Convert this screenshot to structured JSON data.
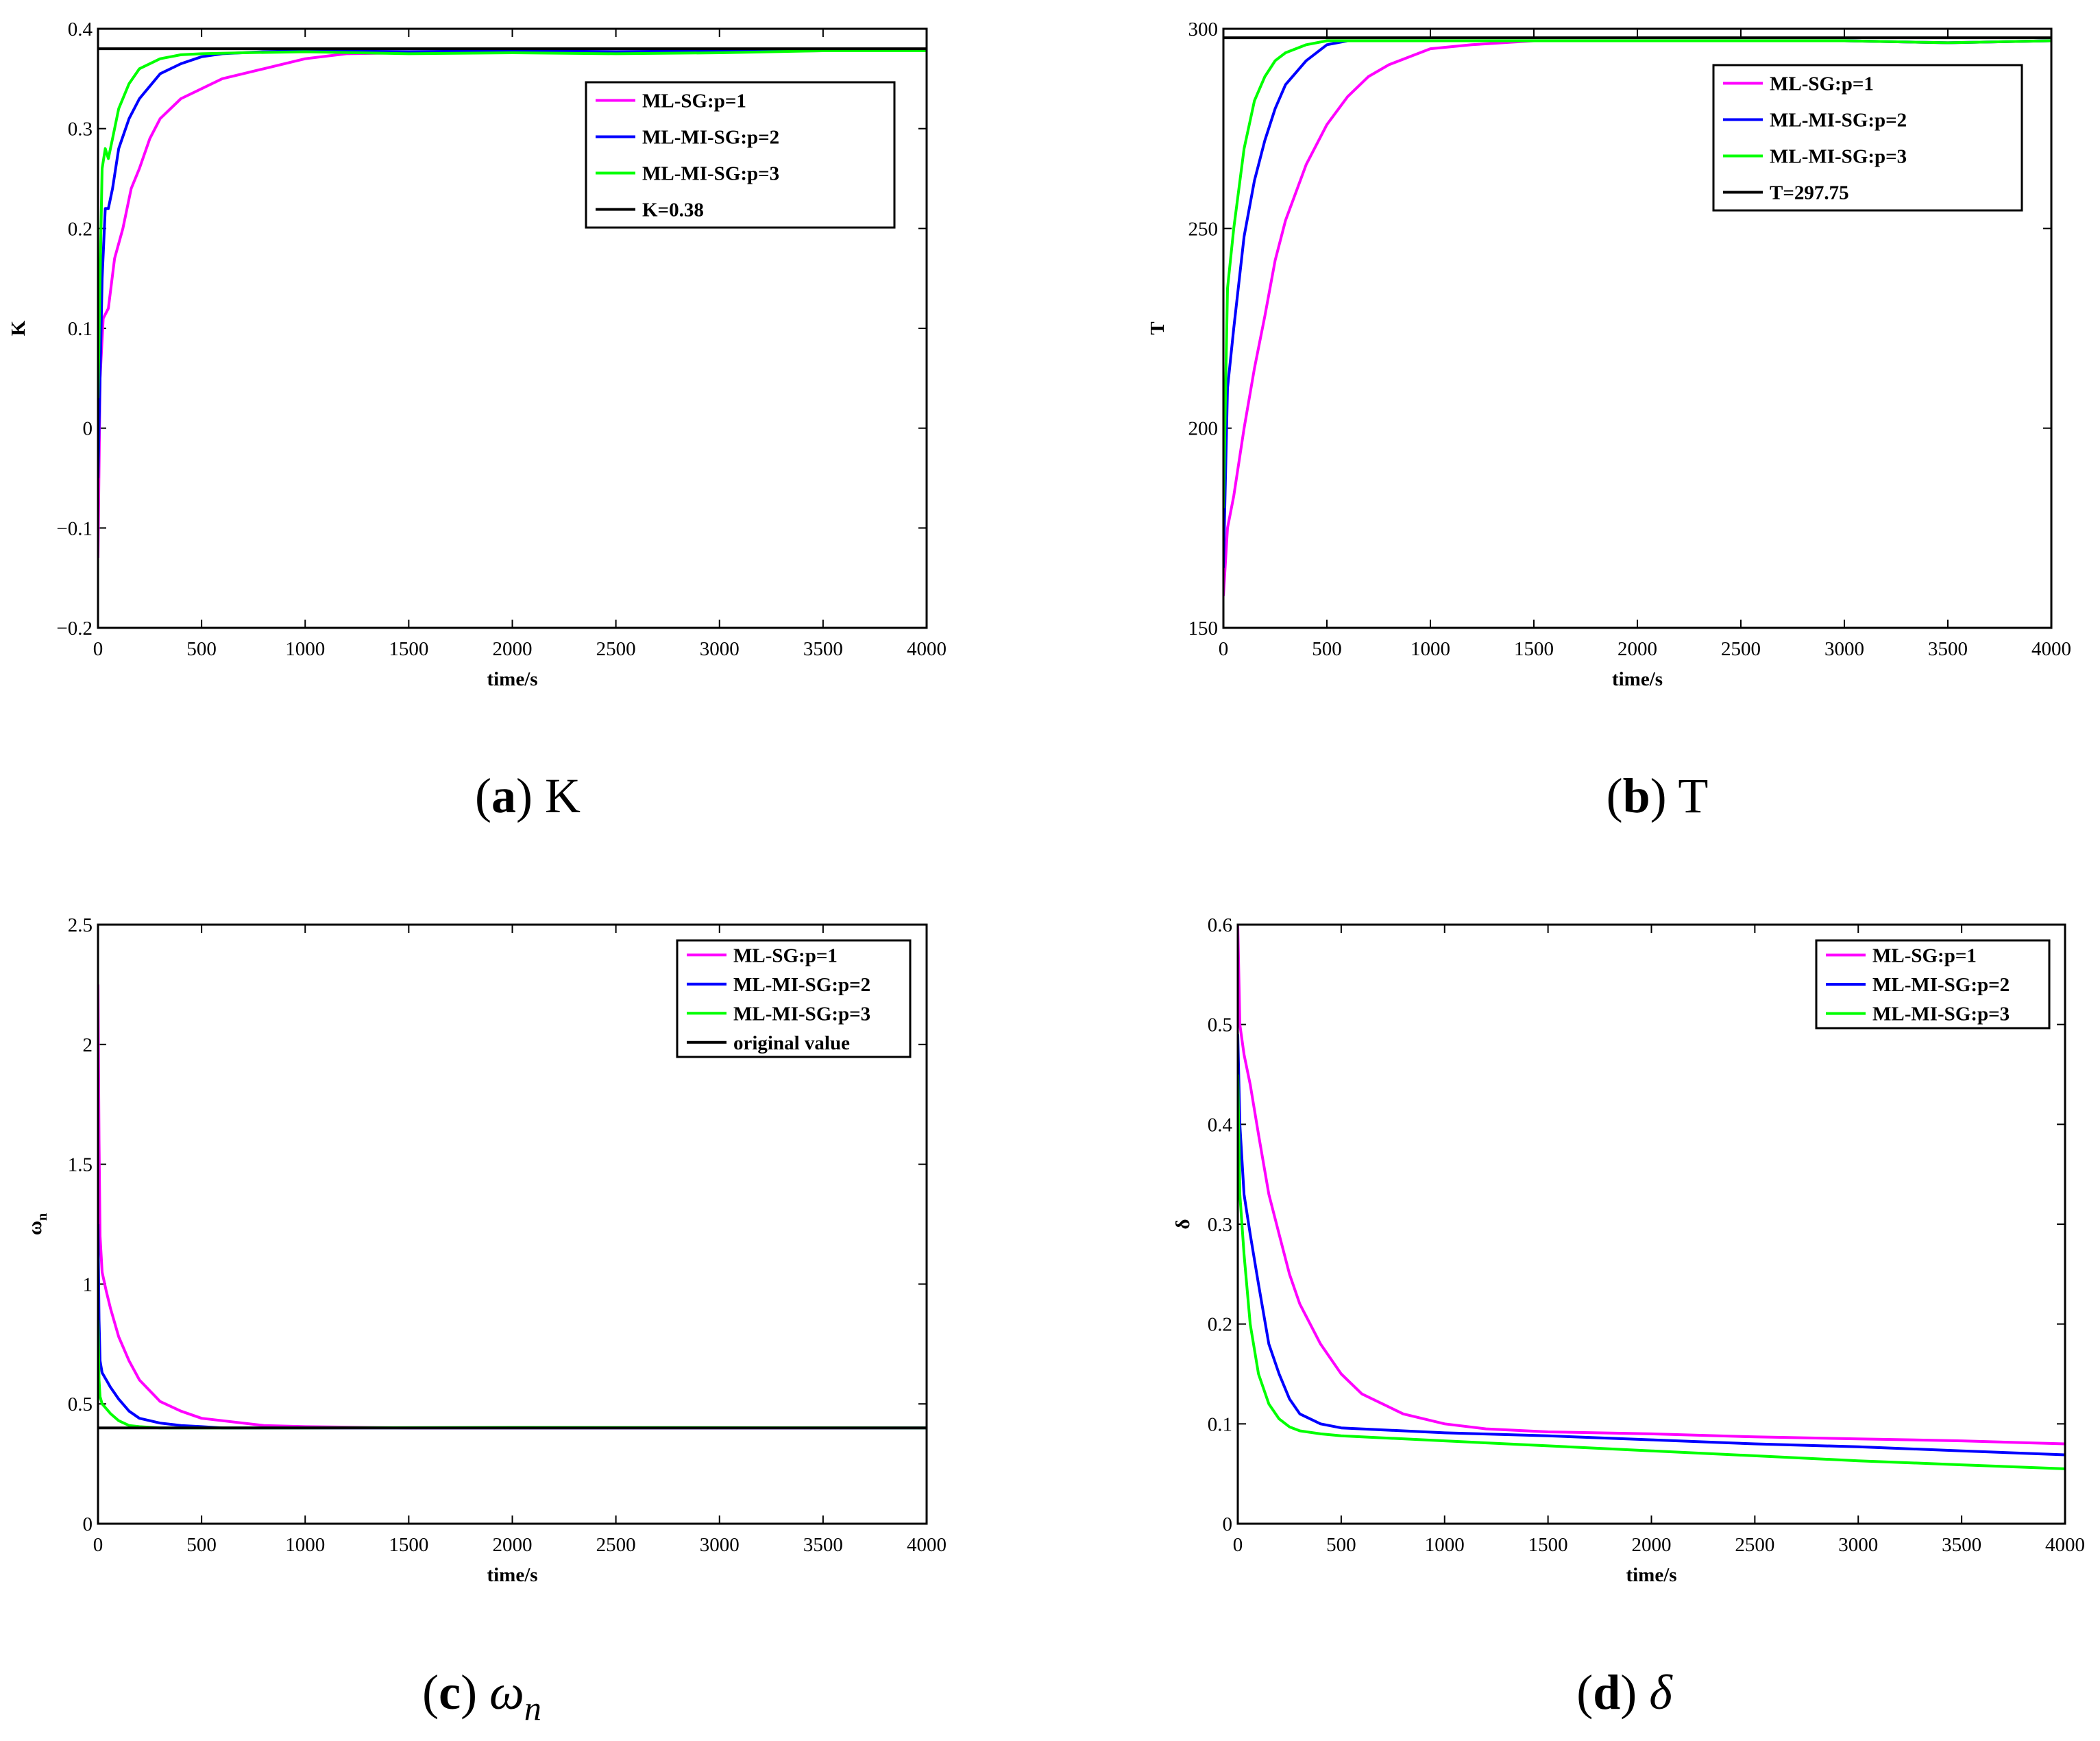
{
  "chart_data": [
    {
      "type": "line",
      "panel": "a",
      "caption_letter": "a",
      "caption_label": "K",
      "xlabel": "time/s",
      "ylabel": "K",
      "xlim": [
        0,
        4000
      ],
      "ylim": [
        -0.2,
        0.4
      ],
      "xticks": [
        "0",
        "500",
        "1000",
        "1500",
        "2000",
        "2500",
        "3000",
        "3500",
        "4000"
      ],
      "yticks": [
        "−0.2",
        "−0.1",
        "0",
        "0.1",
        "0.2",
        "0.3",
        "0.4"
      ],
      "legend": [
        "ML-SG:p=1",
        "ML-MI-SG:p=2",
        "ML-MI-SG:p=3",
        "K=0.38"
      ],
      "legend_position": "top-right",
      "series": [
        {
          "name": "ML-SG:p=1",
          "color": "#ff00ff",
          "x": [
            0,
            10,
            25,
            50,
            80,
            120,
            160,
            200,
            250,
            300,
            400,
            500,
            600,
            700,
            800,
            1000,
            1200,
            1500,
            2000,
            2500,
            3000,
            3500,
            4000
          ],
          "values": [
            -0.13,
            0.05,
            0.11,
            0.12,
            0.17,
            0.2,
            0.24,
            0.26,
            0.29,
            0.31,
            0.33,
            0.34,
            0.35,
            0.355,
            0.36,
            0.37,
            0.375,
            0.376,
            0.377,
            0.376,
            0.377,
            0.378,
            0.379
          ]
        },
        {
          "name": "ML-MI-SG:p=2",
          "color": "#0000ff",
          "x": [
            0,
            10,
            20,
            35,
            50,
            70,
            100,
            150,
            200,
            300,
            400,
            500,
            600,
            800,
            1000,
            1500,
            2000,
            2500,
            3000,
            3500,
            4000
          ],
          "values": [
            -0.05,
            0.05,
            0.15,
            0.22,
            0.22,
            0.24,
            0.28,
            0.31,
            0.33,
            0.355,
            0.365,
            0.372,
            0.375,
            0.377,
            0.378,
            0.377,
            0.378,
            0.377,
            0.378,
            0.379,
            0.379
          ]
        },
        {
          "name": "ML-MI-SG:p=3",
          "color": "#00ff00",
          "x": [
            0,
            10,
            20,
            35,
            50,
            70,
            100,
            150,
            200,
            300,
            400,
            500,
            700,
            1000,
            1500,
            2000,
            2500,
            3000,
            3500,
            4000
          ],
          "values": [
            0.03,
            0.15,
            0.26,
            0.28,
            0.27,
            0.29,
            0.32,
            0.345,
            0.36,
            0.37,
            0.374,
            0.375,
            0.376,
            0.377,
            0.375,
            0.376,
            0.375,
            0.376,
            0.378,
            0.378
          ]
        },
        {
          "name": "K=0.38",
          "color": "#000000",
          "x": [
            0,
            4000
          ],
          "values": [
            0.38,
            0.38
          ]
        }
      ]
    },
    {
      "type": "line",
      "panel": "b",
      "caption_letter": "b",
      "caption_label": "T",
      "xlabel": "time/s",
      "ylabel": "T",
      "xlim": [
        0,
        4000
      ],
      "ylim": [
        150,
        300
      ],
      "xticks": [
        "0",
        "500",
        "1000",
        "1500",
        "2000",
        "2500",
        "3000",
        "3500",
        "4000"
      ],
      "yticks": [
        "150",
        "200",
        "250",
        "300"
      ],
      "legend": [
        "ML-SG:p=1",
        "ML-MI-SG:p=2",
        "ML-MI-SG:p=3",
        "T=297.75"
      ],
      "legend_position": "top-right",
      "series": [
        {
          "name": "ML-SG:p=1",
          "color": "#ff00ff",
          "x": [
            0,
            20,
            50,
            100,
            150,
            200,
            250,
            300,
            400,
            500,
            600,
            700,
            800,
            900,
            1000,
            1200,
            1500,
            2000,
            2500,
            3000,
            3500,
            4000
          ],
          "values": [
            158,
            175,
            183,
            200,
            215,
            228,
            242,
            252,
            266,
            276,
            283,
            288,
            291,
            293,
            295,
            296,
            297,
            297,
            297,
            297,
            296.5,
            297
          ]
        },
        {
          "name": "ML-MI-SG:p=2",
          "color": "#0000ff",
          "x": [
            0,
            20,
            50,
            100,
            150,
            200,
            250,
            300,
            400,
            500,
            600,
            800,
            1000,
            1500,
            2000,
            2500,
            3000,
            3500,
            4000
          ],
          "values": [
            165,
            210,
            225,
            248,
            262,
            272,
            280,
            286,
            292,
            296,
            297,
            297,
            297,
            297,
            297,
            297,
            297,
            296.5,
            297
          ]
        },
        {
          "name": "ML-MI-SG:p=3",
          "color": "#00ff00",
          "x": [
            0,
            20,
            50,
            100,
            150,
            200,
            250,
            300,
            400,
            500,
            600,
            800,
            1000,
            1500,
            2000,
            2500,
            3000,
            3500,
            4000
          ],
          "values": [
            180,
            235,
            250,
            270,
            282,
            288,
            292,
            294,
            296,
            297,
            297,
            297,
            297,
            297,
            297,
            297,
            297,
            296.5,
            297
          ]
        },
        {
          "name": "T=297.75",
          "color": "#000000",
          "x": [
            0,
            4000
          ],
          "values": [
            297.75,
            297.75
          ]
        }
      ]
    },
    {
      "type": "line",
      "panel": "c",
      "caption_letter": "c",
      "caption_label": "ω",
      "caption_sub": "n",
      "xlabel": "time/s",
      "ylabel": "ω",
      "ylabel_sub": "n",
      "xlim": [
        0,
        4000
      ],
      "ylim": [
        0,
        2.5
      ],
      "xticks": [
        "0",
        "500",
        "1000",
        "1500",
        "2000",
        "2500",
        "3000",
        "3500",
        "4000"
      ],
      "yticks": [
        "0",
        "0.5",
        "1",
        "1.5",
        "2",
        "2.5"
      ],
      "legend": [
        "ML-SG:p=1",
        "ML-MI-SG:p=2",
        "ML-MI-SG:p=3",
        "original value"
      ],
      "legend_position": "top-right",
      "series": [
        {
          "name": "ML-SG:p=1",
          "color": "#ff00ff",
          "x": [
            0,
            5,
            10,
            20,
            40,
            60,
            100,
            150,
            200,
            300,
            400,
            500,
            600,
            800,
            1000,
            1500,
            2000,
            3000,
            4000
          ],
          "values": [
            2.25,
            1.6,
            1.2,
            1.05,
            0.97,
            0.9,
            0.78,
            0.68,
            0.6,
            0.51,
            0.47,
            0.44,
            0.43,
            0.41,
            0.405,
            0.4,
            0.4,
            0.4,
            0.4
          ]
        },
        {
          "name": "ML-MI-SG:p=2",
          "color": "#0000ff",
          "x": [
            0,
            5,
            10,
            20,
            40,
            60,
            100,
            150,
            200,
            300,
            400,
            500,
            600,
            800,
            1000,
            2000,
            4000
          ],
          "values": [
            1.25,
            0.85,
            0.68,
            0.63,
            0.6,
            0.57,
            0.52,
            0.47,
            0.44,
            0.42,
            0.41,
            0.405,
            0.4,
            0.4,
            0.4,
            0.4,
            0.4
          ]
        },
        {
          "name": "ML-MI-SG:p=3",
          "color": "#00ff00",
          "x": [
            0,
            5,
            10,
            20,
            40,
            60,
            100,
            150,
            200,
            300,
            400,
            600,
            1000,
            2000,
            4000
          ],
          "values": [
            0.85,
            0.6,
            0.53,
            0.5,
            0.48,
            0.46,
            0.43,
            0.41,
            0.405,
            0.4,
            0.4,
            0.4,
            0.4,
            0.402,
            0.4
          ]
        },
        {
          "name": "original value",
          "color": "#000000",
          "x": [
            0,
            4000
          ],
          "values": [
            0.4,
            0.4
          ]
        }
      ]
    },
    {
      "type": "line",
      "panel": "d",
      "caption_letter": "d",
      "caption_label": "δ",
      "xlabel": "time/s",
      "ylabel": "δ",
      "xlim": [
        0,
        4000
      ],
      "ylim": [
        0,
        0.6
      ],
      "xticks": [
        "0",
        "500",
        "1000",
        "1500",
        "2000",
        "2500",
        "3000",
        "3500",
        "4000"
      ],
      "yticks": [
        "0",
        "0.1",
        "0.2",
        "0.3",
        "0.4",
        "0.5",
        "0.6"
      ],
      "legend": [
        "ML-SG:p=1",
        "ML-MI-SG:p=2",
        "ML-MI-SG:p=3"
      ],
      "legend_position": "top-right",
      "series": [
        {
          "name": "ML-SG:p=1",
          "color": "#ff00ff",
          "x": [
            0,
            10,
            30,
            60,
            100,
            150,
            200,
            250,
            300,
            400,
            500,
            600,
            700,
            800,
            1000,
            1200,
            1500,
            2000,
            2500,
            3000,
            3500,
            4000
          ],
          "values": [
            0.6,
            0.5,
            0.47,
            0.44,
            0.39,
            0.33,
            0.29,
            0.25,
            0.22,
            0.18,
            0.15,
            0.13,
            0.12,
            0.11,
            0.1,
            0.095,
            0.092,
            0.09,
            0.087,
            0.085,
            0.083,
            0.08
          ]
        },
        {
          "name": "ML-MI-SG:p=2",
          "color": "#0000ff",
          "x": [
            0,
            10,
            30,
            60,
            100,
            150,
            200,
            250,
            300,
            400,
            500,
            700,
            1000,
            1500,
            2000,
            2500,
            3000,
            3500,
            4000
          ],
          "values": [
            0.49,
            0.4,
            0.33,
            0.29,
            0.24,
            0.18,
            0.15,
            0.125,
            0.11,
            0.1,
            0.096,
            0.094,
            0.091,
            0.088,
            0.084,
            0.08,
            0.077,
            0.073,
            0.069
          ]
        },
        {
          "name": "ML-MI-SG:p=3",
          "color": "#00ff00",
          "x": [
            0,
            10,
            30,
            60,
            100,
            150,
            200,
            250,
            300,
            400,
            500,
            700,
            1000,
            1500,
            2000,
            2500,
            3000,
            3500,
            4000
          ],
          "values": [
            0.45,
            0.33,
            0.27,
            0.2,
            0.15,
            0.12,
            0.105,
            0.097,
            0.093,
            0.09,
            0.088,
            0.086,
            0.083,
            0.078,
            0.073,
            0.068,
            0.063,
            0.059,
            0.055
          ]
        }
      ]
    }
  ]
}
